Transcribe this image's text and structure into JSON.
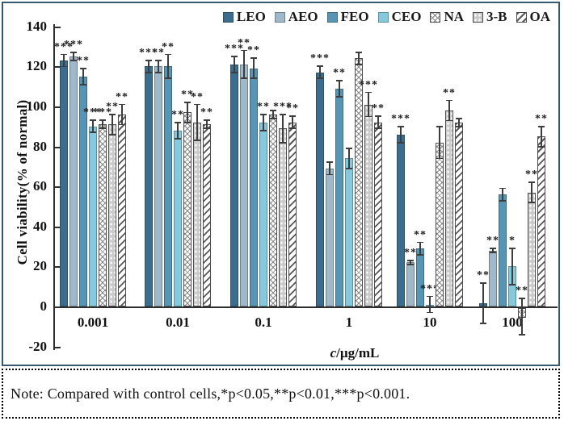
{
  "note": {
    "text": "Note: Compared with control cells,*p<0.05,**p<0.01,***p<0.001."
  },
  "chart_data": {
    "type": "bar",
    "title": "",
    "ylabel": "Cell viability(% of normal)",
    "xlabel_italic": "c",
    "xlabel_rest": "/µg/mL",
    "ylim": [
      -20,
      140
    ],
    "yticks": [
      -20,
      0,
      20,
      40,
      60,
      80,
      100,
      120,
      140
    ],
    "grid": false,
    "legend_position": "top",
    "categories": [
      "0.001",
      "0.01",
      "0.1",
      "1",
      "10",
      "100"
    ],
    "significance_note": "* p<0.05, ** p<0.01, *** p<0.001 vs control",
    "series": [
      {
        "name": "LEO",
        "color": "#3a6d8e",
        "pattern": "solid",
        "values": [
          123,
          120,
          121,
          117,
          86,
          1.5
        ],
        "errors": [
          3,
          3,
          4,
          3,
          4,
          10
        ],
        "stars": [
          "***",
          "***",
          "***",
          "***",
          "***",
          "**"
        ]
      },
      {
        "name": "AEO",
        "color": "#9fb9cb",
        "pattern": "solid",
        "values": [
          125,
          120,
          121,
          69,
          22,
          28
        ],
        "errors": [
          2,
          3,
          7,
          3,
          1,
          1
        ],
        "stars": [
          "***",
          "**",
          "**",
          "",
          "**",
          "**"
        ]
      },
      {
        "name": "FEO",
        "color": "#5795b5",
        "pattern": "solid",
        "values": [
          115,
          120,
          119,
          109,
          29,
          56
        ],
        "errors": [
          4,
          6,
          5,
          4,
          3,
          3
        ],
        "stars": [
          "**",
          "**",
          "**",
          "**",
          "**",
          ""
        ]
      },
      {
        "name": "CEO",
        "color": "#85c9df",
        "pattern": "solid",
        "values": [
          90,
          88,
          92,
          74,
          1,
          20
        ],
        "errors": [
          3,
          4,
          4,
          5,
          4,
          9
        ],
        "stars": [
          "***",
          "**",
          "**",
          "",
          "***",
          "*"
        ]
      },
      {
        "name": "NA",
        "color": "#ffffff",
        "pattern": "crosshatch",
        "values": [
          91,
          97,
          96,
          124,
          82,
          -5
        ],
        "errors": [
          2,
          5,
          2,
          3,
          8,
          9
        ],
        "stars": [
          "***",
          "**",
          "",
          "",
          "",
          "**"
        ]
      },
      {
        "name": "3-B",
        "color": "#cbcbcb",
        "pattern": "dots",
        "values": [
          91,
          92,
          89,
          101,
          98,
          57
        ],
        "errors": [
          5,
          9,
          7,
          6,
          5,
          5
        ],
        "stars": [
          "**",
          "**",
          "***",
          "***",
          "**",
          "**"
        ]
      },
      {
        "name": "OA",
        "color": "#ffffff",
        "pattern": "diagonal",
        "values": [
          96,
          91,
          92,
          92,
          92,
          85
        ],
        "errors": [
          5,
          2,
          3,
          3,
          2,
          5
        ],
        "stars": [
          "**",
          "**",
          "**",
          "**",
          "",
          "**"
        ]
      }
    ]
  }
}
